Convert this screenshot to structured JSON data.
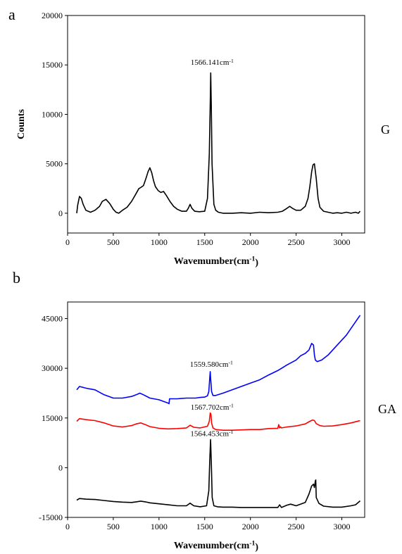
{
  "figure": {
    "panels": [
      {
        "letter": "a",
        "side_label": "G"
      },
      {
        "letter": "b",
        "side_label": "GA"
      }
    ]
  },
  "chart_data": [
    {
      "type": "line",
      "panel": "a",
      "xlabel": "Wavemumber(cm-1)",
      "ylabel": "Counts",
      "xlim": [
        0,
        3250
      ],
      "ylim": [
        -2000,
        20000
      ],
      "xticks": [
        0,
        500,
        1000,
        1500,
        2000,
        2500,
        3000
      ],
      "yticks": [
        0,
        5000,
        10000,
        15000,
        20000
      ],
      "grid": false,
      "series": [
        {
          "color": "#000000",
          "x": [
            100,
            110,
            130,
            150,
            170,
            200,
            250,
            300,
            350,
            380,
            420,
            460,
            480,
            500,
            530,
            560,
            600,
            650,
            700,
            750,
            780,
            800,
            830,
            860,
            880,
            900,
            920,
            940,
            960,
            990,
            1020,
            1050,
            1080,
            1120,
            1160,
            1200,
            1250,
            1300,
            1320,
            1340,
            1360,
            1390,
            1440,
            1500,
            1530,
            1550,
            1560,
            1566,
            1572,
            1580,
            1600,
            1620,
            1650,
            1700,
            1800,
            1900,
            2000,
            2100,
            2200,
            2300,
            2350,
            2400,
            2430,
            2460,
            2500,
            2550,
            2600,
            2630,
            2650,
            2670,
            2685,
            2700,
            2720,
            2740,
            2760,
            2800,
            2850,
            2900,
            2950,
            3000,
            3050,
            3100,
            3150,
            3180,
            3200
          ],
          "y": [
            0,
            800,
            1700,
            1500,
            900,
            300,
            100,
            300,
            700,
            1200,
            1400,
            1000,
            700,
            400,
            100,
            0,
            300,
            600,
            1200,
            2000,
            2500,
            2600,
            2800,
            3600,
            4200,
            4600,
            4100,
            3300,
            2700,
            2300,
            2100,
            2200,
            1800,
            1200,
            700,
            400,
            200,
            200,
            500,
            900,
            500,
            200,
            150,
            200,
            1500,
            6000,
            11000,
            14200,
            11000,
            5000,
            900,
            300,
            100,
            0,
            0,
            50,
            0,
            100,
            50,
            100,
            200,
            500,
            700,
            500,
            300,
            300,
            700,
            1500,
            2700,
            4200,
            4900,
            5000,
            3500,
            1500,
            600,
            200,
            100,
            0,
            50,
            0,
            100,
            0,
            100,
            0,
            200
          ]
        }
      ],
      "annotations": [
        {
          "text": "1566.141cm-1",
          "x": 1566,
          "y": 15000
        }
      ]
    },
    {
      "type": "line",
      "panel": "b",
      "xlabel": "Wavemumber(cm-1)",
      "ylabel": "",
      "xlim": [
        0,
        3250
      ],
      "ylim": [
        -15000,
        50000
      ],
      "xticks": [
        0,
        500,
        1000,
        1500,
        2000,
        2500,
        3000
      ],
      "yticks": [
        -15000,
        0,
        15000,
        30000,
        45000
      ],
      "grid": false,
      "series": [
        {
          "color": "#0000ff",
          "x": [
            100,
            130,
            200,
            300,
            400,
            500,
            600,
            700,
            750,
            790,
            830,
            900,
            1000,
            1050,
            1100,
            1110,
            1115,
            1200,
            1300,
            1400,
            1450,
            1500,
            1530,
            1545,
            1555,
            1560,
            1565,
            1575,
            1590,
            1620,
            1700,
            1800,
            1900,
            2000,
            2100,
            2200,
            2300,
            2400,
            2500,
            2550,
            2600,
            2640,
            2670,
            2690,
            2700,
            2710,
            2730,
            2780,
            2850,
            2950,
            3050,
            3150,
            3200
          ],
          "y": [
            23500,
            24500,
            24000,
            23500,
            22000,
            21000,
            21000,
            21500,
            22000,
            22500,
            22000,
            21000,
            20500,
            20000,
            19500,
            19300,
            20800,
            20800,
            21000,
            21000,
            21200,
            21300,
            21700,
            23000,
            27000,
            29000,
            27000,
            23000,
            21800,
            21800,
            22500,
            23500,
            24500,
            25500,
            26500,
            28000,
            29300,
            31000,
            32500,
            33800,
            34500,
            35500,
            37500,
            37000,
            34000,
            32500,
            32000,
            32500,
            34000,
            37000,
            40000,
            44000,
            46000
          ]
        },
        {
          "color": "#ff0000",
          "x": [
            100,
            130,
            200,
            300,
            400,
            500,
            600,
            700,
            750,
            800,
            850,
            900,
            1000,
            1100,
            1200,
            1300,
            1340,
            1380,
            1450,
            1530,
            1550,
            1560,
            1568,
            1575,
            1590,
            1620,
            1700,
            1800,
            1900,
            2000,
            2100,
            2200,
            2300,
            2310,
            2320,
            2330,
            2340,
            2400,
            2500,
            2600,
            2650,
            2680,
            2700,
            2720,
            2760,
            2800,
            2900,
            3000,
            3100,
            3200
          ],
          "y": [
            14000,
            14800,
            14500,
            14200,
            13500,
            12600,
            12300,
            12700,
            13200,
            13500,
            13000,
            12400,
            11900,
            11700,
            11800,
            12000,
            12800,
            12200,
            12000,
            12500,
            14000,
            16500,
            16200,
            13500,
            12000,
            11500,
            11300,
            11300,
            11400,
            11500,
            11500,
            11800,
            11900,
            13000,
            12000,
            12300,
            12000,
            12300,
            12600,
            13200,
            14000,
            14400,
            14200,
            13300,
            12700,
            12500,
            12600,
            13000,
            13500,
            14200
          ]
        },
        {
          "color": "#000000",
          "x": [
            100,
            130,
            200,
            300,
            400,
            500,
            600,
            700,
            750,
            800,
            850,
            900,
            1000,
            1100,
            1200,
            1300,
            1340,
            1380,
            1450,
            1520,
            1545,
            1555,
            1564,
            1572,
            1582,
            1600,
            1640,
            1700,
            1800,
            1900,
            2000,
            2100,
            2200,
            2300,
            2320,
            2340,
            2400,
            2440,
            2500,
            2600,
            2640,
            2670,
            2690,
            2700,
            2710,
            2715,
            2720,
            2750,
            2800,
            2900,
            3000,
            3100,
            3150,
            3200
          ],
          "y": [
            -9800,
            -9300,
            -9500,
            -9600,
            -9900,
            -10200,
            -10400,
            -10500,
            -10300,
            -10100,
            -10300,
            -10600,
            -10900,
            -11200,
            -11500,
            -11500,
            -10700,
            -11500,
            -11800,
            -11500,
            -7000,
            2000,
            8500,
            2000,
            -9000,
            -11500,
            -11800,
            -11900,
            -11900,
            -12000,
            -12000,
            -12000,
            -12000,
            -12000,
            -11200,
            -12000,
            -11300,
            -11000,
            -11500,
            -10500,
            -8000,
            -5500,
            -5000,
            -6000,
            -4000,
            -3700,
            -9000,
            -10800,
            -11600,
            -11900,
            -11900,
            -11500,
            -11200,
            -10000
          ]
        }
      ],
      "annotations": [
        {
          "text": "1559.580cm-1",
          "x": 1559,
          "y": 30500
        },
        {
          "text": "1567.702cm-1",
          "x": 1567,
          "y": 17500
        },
        {
          "text": "1564.453cm-1",
          "x": 1564,
          "y": 9500
        }
      ]
    }
  ]
}
